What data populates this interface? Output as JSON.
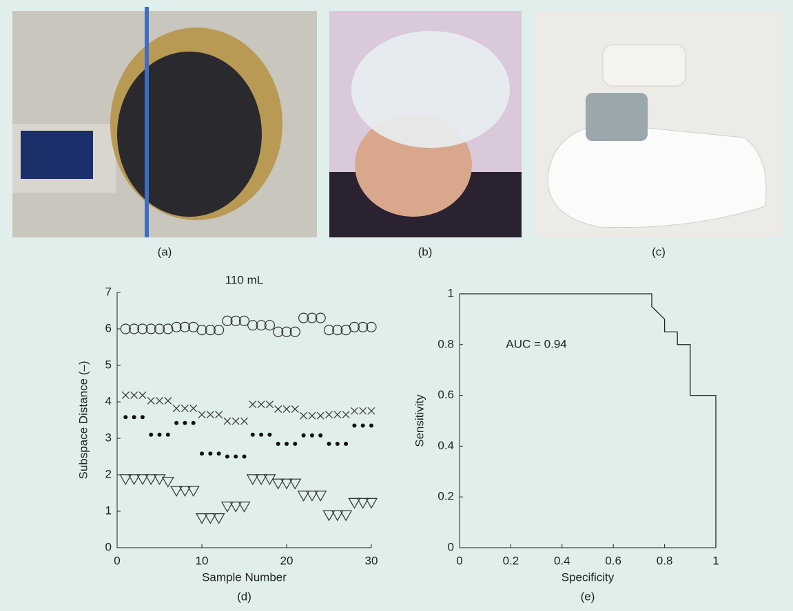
{
  "panels": [
    "(a)",
    "(b)",
    "(c)"
  ],
  "chart_data": [
    {
      "type": "scatter",
      "title": "110 mL",
      "xlabel": "Sample Number",
      "ylabel": "Subspace Distance (–)",
      "caption": "(d)",
      "x": [
        1,
        2,
        3,
        4,
        5,
        6,
        7,
        8,
        9,
        10,
        11,
        12,
        13,
        14,
        15,
        16,
        17,
        18,
        19,
        20,
        21,
        22,
        23,
        24,
        25,
        26,
        27,
        28,
        29,
        30
      ],
      "xlim": [
        0,
        30
      ],
      "xticks": [
        0,
        10,
        20,
        30
      ],
      "ylim": [
        0,
        7
      ],
      "yticks": [
        0,
        1,
        2,
        3,
        4,
        5,
        6,
        7
      ],
      "series": [
        {
          "marker": "circle",
          "color": "#333333",
          "values": [
            6.0,
            6.0,
            6.0,
            6.0,
            6.0,
            6.0,
            6.05,
            6.05,
            6.05,
            5.97,
            5.97,
            5.97,
            6.22,
            6.22,
            6.22,
            6.1,
            6.1,
            6.1,
            5.92,
            5.92,
            5.92,
            6.3,
            6.3,
            6.3,
            5.97,
            5.97,
            5.97,
            6.05,
            6.05,
            6.05
          ]
        },
        {
          "marker": "x",
          "color": "#333333",
          "values": [
            4.18,
            4.18,
            4.18,
            4.03,
            4.03,
            4.03,
            3.82,
            3.82,
            3.82,
            3.65,
            3.65,
            3.65,
            3.47,
            3.47,
            3.47,
            3.93,
            3.93,
            3.93,
            3.8,
            3.8,
            3.8,
            3.62,
            3.62,
            3.62,
            3.65,
            3.65,
            3.65,
            3.75,
            3.75,
            3.75
          ]
        },
        {
          "marker": "dot",
          "color": "#111111",
          "values": [
            3.58,
            3.58,
            3.58,
            3.1,
            3.1,
            3.1,
            3.42,
            3.42,
            3.42,
            2.58,
            2.58,
            2.58,
            2.5,
            2.5,
            2.5,
            3.1,
            3.1,
            3.1,
            2.85,
            2.85,
            2.85,
            3.08,
            3.08,
            3.08,
            2.85,
            2.85,
            2.85,
            3.35,
            3.35,
            3.35
          ]
        },
        {
          "marker": "triangle",
          "color": "#333333",
          "values": [
            1.87,
            1.87,
            1.87,
            1.87,
            1.87,
            1.8,
            1.55,
            1.55,
            1.55,
            0.8,
            0.8,
            0.8,
            1.12,
            1.12,
            1.12,
            1.87,
            1.87,
            1.87,
            1.75,
            1.75,
            1.75,
            1.42,
            1.42,
            1.42,
            0.88,
            0.88,
            0.88,
            1.22,
            1.22,
            1.22
          ]
        }
      ]
    },
    {
      "type": "line",
      "xlabel": "Specificity",
      "ylabel": "Sensitivity",
      "caption": "(e)",
      "annotation": "AUC = 0.94",
      "x": [
        0,
        0.75,
        0.75,
        0.8,
        0.8,
        0.85,
        0.85,
        0.9,
        0.9,
        1,
        1
      ],
      "y": [
        1,
        1,
        0.95,
        0.9,
        0.85,
        0.85,
        0.8,
        0.8,
        0.6,
        0.6,
        0
      ],
      "color": "#222222",
      "xlim": [
        0,
        1
      ],
      "xticks": [
        0,
        0.2,
        0.4,
        0.6,
        0.8,
        1
      ],
      "ylim": [
        0,
        1
      ],
      "yticks": [
        0,
        0.2,
        0.4,
        0.6,
        0.8,
        1
      ]
    }
  ]
}
